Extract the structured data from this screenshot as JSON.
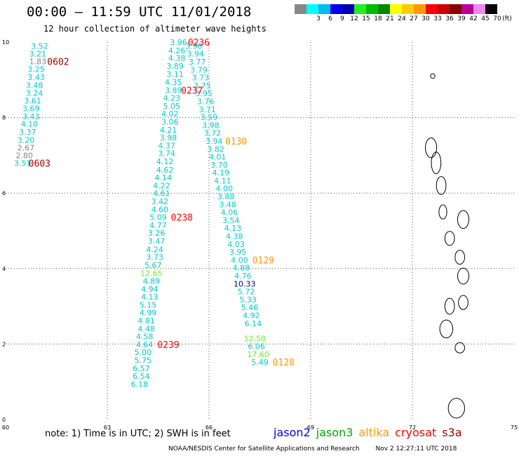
{
  "header": {
    "title": "00:00 — 11:59 UTC 11/01/2018",
    "subtitle": "12 hour collection of altimeter wave heights"
  },
  "legend": {
    "swatches": [
      {
        "color": "#888888",
        "label": ""
      },
      {
        "color": "#00ffff",
        "label": "3"
      },
      {
        "color": "#00bbee",
        "label": "6"
      },
      {
        "color": "#0000ee",
        "label": "9"
      },
      {
        "color": "#0000aa",
        "label": "12"
      },
      {
        "color": "#22ee22",
        "label": "15"
      },
      {
        "color": "#00bb00",
        "label": "18"
      },
      {
        "color": "#008800",
        "label": "21"
      },
      {
        "color": "#ffff00",
        "label": "24"
      },
      {
        "color": "#ffcc00",
        "label": "27"
      },
      {
        "color": "#ff9900",
        "label": "30"
      },
      {
        "color": "#ff0000",
        "label": "33"
      },
      {
        "color": "#cc0000",
        "label": "36"
      },
      {
        "color": "#880000",
        "label": "39"
      },
      {
        "color": "#bb0099",
        "label": "42"
      },
      {
        "color": "#ee88ee",
        "label": "45"
      },
      {
        "color": "#000000",
        "label": "70"
      }
    ],
    "unit": "(ft)"
  },
  "notes": {
    "text": "note:  1) Time is in UTC;  2) SWH is in feet",
    "satellites": [
      {
        "name": "jason2",
        "color": "#0000ff"
      },
      {
        "name": "jason3",
        "color": "#00aa00"
      },
      {
        "name": "altika",
        "color": "#ff9900"
      },
      {
        "name": "cryosat",
        "color": "#ff0000"
      },
      {
        "name": "s3a",
        "color": "#aa0000"
      }
    ]
  },
  "footer": {
    "org": "NOAA/NESDIS Center for Satellite Applications and Research",
    "timestamp": "Nov  2 12:27:11 UTC 2018"
  },
  "chart_data": {
    "type": "scatter",
    "title": "00:00 — 11:59 UTC 11/01/2018",
    "subtitle": "12 hour collection of altimeter wave heights",
    "xlim": [
      60,
      75
    ],
    "ylim": [
      0,
      10
    ],
    "x_ticks": [
      "60",
      "63",
      "66",
      "69",
      "72",
      "75"
    ],
    "y_ticks": [
      "0",
      "2",
      "4",
      "6",
      "8",
      "10"
    ],
    "grid": true,
    "colors": {
      "s3a": "#aa0000",
      "cryosat": "#ff0000",
      "altika": "#ff9900",
      "default_value": "#00cccc",
      "low_value": "#888888",
      "high_value": "#66ee33",
      "dark_value": "#000099",
      "coast": "#000000"
    },
    "series": [
      {
        "name": "track-1",
        "points": [
          {
            "x": 61.0,
            "y": 9.9,
            "v": "3.52"
          },
          {
            "x": 60.95,
            "y": 9.69,
            "v": "3.21"
          },
          {
            "x": 60.95,
            "y": 9.49,
            "v": "1.83"
          },
          {
            "x": 60.9,
            "y": 9.28,
            "v": "3.25"
          },
          {
            "x": 60.9,
            "y": 9.07,
            "v": "3.43"
          },
          {
            "x": 60.85,
            "y": 8.86,
            "v": "3.48"
          },
          {
            "x": 60.85,
            "y": 8.65,
            "v": "3.24"
          },
          {
            "x": 60.8,
            "y": 8.45,
            "v": "3.61"
          },
          {
            "x": 60.75,
            "y": 8.24,
            "v": "3.69"
          },
          {
            "x": 60.75,
            "y": 8.03,
            "v": "3.43"
          },
          {
            "x": 60.7,
            "y": 7.83,
            "v": "4.10"
          },
          {
            "x": 60.65,
            "y": 7.62,
            "v": "3.37"
          },
          {
            "x": 60.6,
            "y": 7.41,
            "v": "3.20"
          },
          {
            "x": 60.6,
            "y": 7.2,
            "v": "2.67"
          },
          {
            "x": 60.55,
            "y": 7.0,
            "v": "2.80"
          },
          {
            "x": 60.5,
            "y": 6.79,
            "v": "3.51"
          }
        ]
      },
      {
        "name": "track-2",
        "points": [
          {
            "x": 65.1,
            "y": 10.0,
            "v": "3.96"
          },
          {
            "x": 65.05,
            "y": 9.78,
            "v": "4.26"
          },
          {
            "x": 65.05,
            "y": 9.58,
            "v": "4.38"
          },
          {
            "x": 65.0,
            "y": 9.37,
            "v": "3.89"
          },
          {
            "x": 65.0,
            "y": 9.15,
            "v": "3.11"
          },
          {
            "x": 64.95,
            "y": 8.94,
            "v": "4.35"
          },
          {
            "x": 64.95,
            "y": 8.73,
            "v": "3.89"
          },
          {
            "x": 64.9,
            "y": 8.52,
            "v": "4.23"
          },
          {
            "x": 64.9,
            "y": 8.31,
            "v": "5.05"
          },
          {
            "x": 64.85,
            "y": 8.1,
            "v": "4.02"
          },
          {
            "x": 64.85,
            "y": 7.89,
            "v": "3.06"
          },
          {
            "x": 64.8,
            "y": 7.68,
            "v": "4.21"
          },
          {
            "x": 64.8,
            "y": 7.47,
            "v": "3.98"
          },
          {
            "x": 64.75,
            "y": 7.26,
            "v": "4.37"
          },
          {
            "x": 64.75,
            "y": 7.05,
            "v": "3.74"
          },
          {
            "x": 64.7,
            "y": 6.84,
            "v": "4.12"
          },
          {
            "x": 64.7,
            "y": 6.62,
            "v": "4.62"
          },
          {
            "x": 64.65,
            "y": 6.41,
            "v": "4.14"
          },
          {
            "x": 64.6,
            "y": 6.2,
            "v": "4.22"
          },
          {
            "x": 64.6,
            "y": 5.99,
            "v": "4.61"
          },
          {
            "x": 64.55,
            "y": 5.78,
            "v": "3.42"
          },
          {
            "x": 64.55,
            "y": 5.57,
            "v": "4.60"
          },
          {
            "x": 64.5,
            "y": 5.36,
            "v": "5.09"
          },
          {
            "x": 64.5,
            "y": 5.15,
            "v": "4.77"
          },
          {
            "x": 64.45,
            "y": 4.94,
            "v": "3.26"
          },
          {
            "x": 64.45,
            "y": 4.73,
            "v": "3.47"
          },
          {
            "x": 64.4,
            "y": 4.51,
            "v": "4.24"
          },
          {
            "x": 64.4,
            "y": 4.3,
            "v": "3.73"
          },
          {
            "x": 64.35,
            "y": 4.09,
            "v": "5.67"
          },
          {
            "x": 64.3,
            "y": 3.88,
            "v": "12.65"
          },
          {
            "x": 64.3,
            "y": 3.67,
            "v": "4.89"
          },
          {
            "x": 64.25,
            "y": 3.46,
            "v": "4.94"
          },
          {
            "x": 64.25,
            "y": 3.25,
            "v": "4.13"
          },
          {
            "x": 64.2,
            "y": 3.04,
            "v": "5.15"
          },
          {
            "x": 64.2,
            "y": 2.83,
            "v": "4.99"
          },
          {
            "x": 64.15,
            "y": 2.62,
            "v": "4.81"
          },
          {
            "x": 64.15,
            "y": 2.41,
            "v": "4.48"
          },
          {
            "x": 64.1,
            "y": 2.2,
            "v": "4.58"
          },
          {
            "x": 64.1,
            "y": 1.99,
            "v": "4.64"
          },
          {
            "x": 64.05,
            "y": 1.78,
            "v": "5.00"
          },
          {
            "x": 64.05,
            "y": 1.57,
            "v": "5.75"
          },
          {
            "x": 64.0,
            "y": 1.36,
            "v": "6.57"
          },
          {
            "x": 64.0,
            "y": 1.15,
            "v": "6.54"
          },
          {
            "x": 63.95,
            "y": 0.94,
            "v": "6.18"
          }
        ]
      },
      {
        "name": "track-3",
        "points": [
          {
            "x": 65.55,
            "y": 9.9,
            "v": "3.98"
          },
          {
            "x": 65.6,
            "y": 9.69,
            "v": "3.94"
          },
          {
            "x": 65.65,
            "y": 9.48,
            "v": "3.77"
          },
          {
            "x": 65.7,
            "y": 9.27,
            "v": "3.79"
          },
          {
            "x": 65.75,
            "y": 9.06,
            "v": "3.73"
          },
          {
            "x": 65.8,
            "y": 8.85,
            "v": "3.75"
          },
          {
            "x": 65.85,
            "y": 8.64,
            "v": "3.95"
          },
          {
            "x": 65.9,
            "y": 8.43,
            "v": "3.76"
          },
          {
            "x": 65.95,
            "y": 8.22,
            "v": "3.71"
          },
          {
            "x": 66.0,
            "y": 8.01,
            "v": "3.59"
          },
          {
            "x": 66.05,
            "y": 7.8,
            "v": "3.98"
          },
          {
            "x": 66.1,
            "y": 7.59,
            "v": "3.72"
          },
          {
            "x": 66.15,
            "y": 7.38,
            "v": "3.94"
          },
          {
            "x": 66.2,
            "y": 7.17,
            "v": "3.82"
          },
          {
            "x": 66.25,
            "y": 6.96,
            "v": "4.01"
          },
          {
            "x": 66.3,
            "y": 6.75,
            "v": "3.70"
          },
          {
            "x": 66.35,
            "y": 6.54,
            "v": "4.19"
          },
          {
            "x": 66.4,
            "y": 6.33,
            "v": "4.11"
          },
          {
            "x": 66.45,
            "y": 6.12,
            "v": "4.00"
          },
          {
            "x": 66.5,
            "y": 5.91,
            "v": "3.88"
          },
          {
            "x": 66.55,
            "y": 5.7,
            "v": "3.48"
          },
          {
            "x": 66.6,
            "y": 5.49,
            "v": "4.06"
          },
          {
            "x": 66.65,
            "y": 5.28,
            "v": "3.54"
          },
          {
            "x": 66.7,
            "y": 5.07,
            "v": "4.13"
          },
          {
            "x": 66.75,
            "y": 4.86,
            "v": "4.38"
          },
          {
            "x": 66.8,
            "y": 4.65,
            "v": "4.03"
          },
          {
            "x": 66.85,
            "y": 4.44,
            "v": "3.95"
          },
          {
            "x": 66.9,
            "y": 4.23,
            "v": "4.00"
          },
          {
            "x": 66.95,
            "y": 4.02,
            "v": "4.88"
          },
          {
            "x": 67.0,
            "y": 3.81,
            "v": "4.76"
          },
          {
            "x": 67.05,
            "y": 3.6,
            "v": "10.33"
          },
          {
            "x": 67.1,
            "y": 3.39,
            "v": "5.72"
          },
          {
            "x": 67.15,
            "y": 3.18,
            "v": "5.33"
          },
          {
            "x": 67.2,
            "y": 2.97,
            "v": "5.46"
          },
          {
            "x": 67.25,
            "y": 2.76,
            "v": "4.92"
          },
          {
            "x": 67.3,
            "y": 2.55,
            "v": "6.14"
          },
          {
            "x": 67.35,
            "y": 2.15,
            "v": "12.50"
          },
          {
            "x": 67.4,
            "y": 1.94,
            "v": "6.06"
          },
          {
            "x": 67.45,
            "y": 1.73,
            "v": "17.60"
          },
          {
            "x": 67.5,
            "y": 1.52,
            "v": "5.49"
          }
        ]
      }
    ],
    "time_labels": [
      {
        "x": 61.55,
        "y": 9.49,
        "v": "0602",
        "sat": "s3a"
      },
      {
        "x": 61.0,
        "y": 6.79,
        "v": "0603",
        "sat": "s3a"
      },
      {
        "x": 65.7,
        "y": 10.0,
        "v": "0236",
        "sat": "cryosat"
      },
      {
        "x": 65.5,
        "y": 8.73,
        "v": "0237",
        "sat": "cryosat"
      },
      {
        "x": 65.2,
        "y": 5.36,
        "v": "0238",
        "sat": "cryosat"
      },
      {
        "x": 64.8,
        "y": 1.99,
        "v": "0239",
        "sat": "cryosat"
      },
      {
        "x": 66.8,
        "y": 7.38,
        "v": "0130",
        "sat": "altika"
      },
      {
        "x": 67.6,
        "y": 4.23,
        "v": "0129",
        "sat": "altika"
      },
      {
        "x": 68.2,
        "y": 1.52,
        "v": "0128",
        "sat": "altika"
      }
    ]
  }
}
